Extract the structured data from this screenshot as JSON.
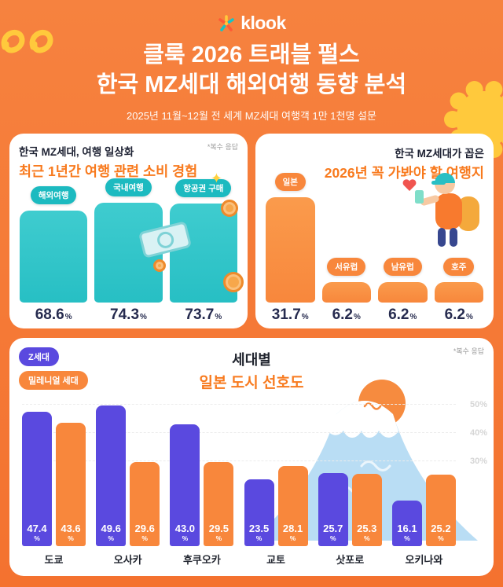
{
  "page": {
    "background_color": "#F5793C",
    "accent_orange": "#F87A1E",
    "teal": "#2BC0C4",
    "purple": "#5A49DF",
    "bar_orange": "#F8873C",
    "yellow": "#FFC93C"
  },
  "icons": {
    "sparkle": "✦"
  },
  "header": {
    "brand": "klook",
    "title_line1": "클룩 2026 트래블 펄스",
    "title_line2": "한국 MZ세대 해외여행 동향 분석",
    "subtitle": "2025년 11월~12월 전 세계 MZ세대 여행객 1만 1천명 설문"
  },
  "cards": {
    "consumption": {
      "title": "한국 MZ세대, 여행 일상화",
      "highlight": "최근 1년간 여행 관련 소비 경험",
      "note": "*복수 응답"
    },
    "destinations": {
      "title": "한국 MZ세대가 꼽은",
      "highlight": "2026년 꼭 가봐야 할 여행지"
    },
    "cities": {
      "title": "세대별",
      "highlight": "일본 도시 선호도",
      "note": "*복수 응답",
      "legend": [
        {
          "label": "Z세대",
          "color": "#5A49DF"
        },
        {
          "label": "밀레니얼 세대",
          "color": "#F8873C"
        }
      ]
    }
  },
  "chart_data": [
    {
      "type": "bar",
      "title": "최근 1년간 여행 관련 소비 경험",
      "unit": "%",
      "categories": [
        "해외여행",
        "국내여행",
        "항공권 구매"
      ],
      "values": [
        68.6,
        74.3,
        73.7
      ],
      "labels": [
        "68.6",
        "74.3",
        "73.7"
      ],
      "bar_color": "#2BC0C4",
      "ylim": [
        0,
        80
      ]
    },
    {
      "type": "bar",
      "title": "2026년 꼭 가봐야 할 여행지",
      "unit": "%",
      "categories": [
        "일본",
        "서유럽",
        "남유럽",
        "호주"
      ],
      "values": [
        31.7,
        6.2,
        6.2,
        6.2
      ],
      "labels": [
        "31.7",
        "6.2",
        "6.2",
        "6.2"
      ],
      "bar_color": "#F8873C",
      "ylim": [
        0,
        35
      ]
    },
    {
      "type": "bar",
      "title": "세대별 일본 도시 선호도",
      "unit": "%",
      "categories": [
        "도쿄",
        "오사카",
        "후쿠오카",
        "교토",
        "삿포로",
        "오키나와"
      ],
      "series": [
        {
          "name": "Z세대",
          "color": "#5A49DF",
          "values": [
            47.4,
            49.6,
            43.0,
            23.5,
            25.7,
            16.1
          ],
          "labels": [
            "47.4",
            "49.6",
            "43.0",
            "23.5",
            "25.7",
            "16.1"
          ]
        },
        {
          "name": "밀레니얼 세대",
          "color": "#F8873C",
          "values": [
            43.6,
            29.6,
            29.5,
            28.1,
            25.3,
            25.2
          ],
          "labels": [
            "43.6",
            "29.6",
            "29.5",
            "28.1",
            "25.3",
            "25.2"
          ]
        }
      ],
      "y_ticks": [
        {
          "label": "50%",
          "value": 50
        },
        {
          "label": "40%",
          "value": 40
        },
        {
          "label": "30%",
          "value": 30
        }
      ],
      "ylim": [
        0,
        54
      ],
      "legend_position": "top-left",
      "y_axis_side": "right"
    }
  ]
}
